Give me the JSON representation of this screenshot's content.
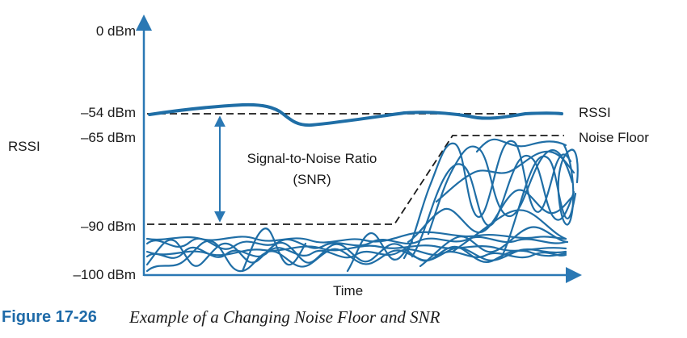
{
  "axis": {
    "y_title": "RSSI",
    "x_title": "Time",
    "ticks": [
      "0 dBm",
      "–54 dBm",
      "–65 dBm",
      "–90 dBm",
      "–100 dBm"
    ]
  },
  "labels": {
    "rssi": "RSSI",
    "noise_floor": "Noise Floor",
    "snr_line1": "Signal-to-Noise Ratio",
    "snr_line2": "(SNR)"
  },
  "caption": {
    "number": "Figure 17-26",
    "title": "Example of a Changing Noise Floor and SNR"
  },
  "colors": {
    "signal": "#1f6ea6",
    "axis": "#2a78b4",
    "dashed": "#1a1a1a",
    "caption_number": "#1e6aa8"
  }
}
